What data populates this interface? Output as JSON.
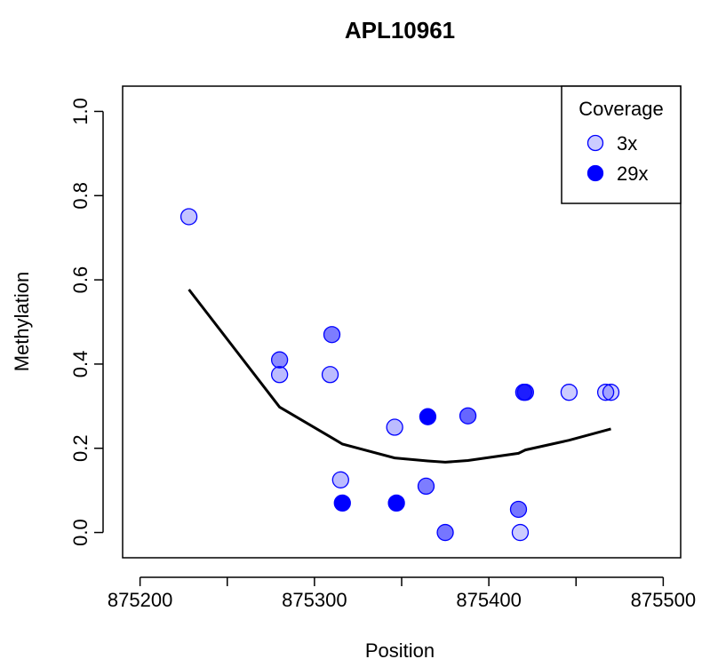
{
  "chart_data": {
    "type": "scatter",
    "title": "APL10961",
    "xlabel": "Position",
    "ylabel": "Methylation",
    "xlim": [
      875190,
      875510
    ],
    "ylim": [
      -0.06,
      1.06
    ],
    "xticks": [
      875200,
      875250,
      875300,
      875350,
      875400,
      875450,
      875500
    ],
    "xtick_labels": [
      "875200",
      "",
      "875300",
      "",
      "875400",
      "",
      "875500"
    ],
    "yticks": [
      0.0,
      0.2,
      0.4,
      0.6,
      0.8,
      1.0
    ],
    "ytick_labels": [
      "0.0",
      "0.2",
      "0.4",
      "0.6",
      "0.8",
      "1.0"
    ],
    "grid": false,
    "point_color": "#0000ff",
    "line_color": "#000000",
    "points": [
      {
        "x": 875228,
        "y": 0.75,
        "coverage": 4
      },
      {
        "x": 875280,
        "y": 0.41,
        "coverage": 11
      },
      {
        "x": 875280,
        "y": 0.375,
        "coverage": 5
      },
      {
        "x": 875310,
        "y": 0.47,
        "coverage": 13
      },
      {
        "x": 875309,
        "y": 0.375,
        "coverage": 5
      },
      {
        "x": 875315,
        "y": 0.125,
        "coverage": 5
      },
      {
        "x": 875316,
        "y": 0.07,
        "coverage": 29
      },
      {
        "x": 875346,
        "y": 0.25,
        "coverage": 5
      },
      {
        "x": 875347,
        "y": 0.07,
        "coverage": 29
      },
      {
        "x": 875365,
        "y": 0.275,
        "coverage": 29
      },
      {
        "x": 875364,
        "y": 0.11,
        "coverage": 13
      },
      {
        "x": 875375,
        "y": 0.0,
        "coverage": 14
      },
      {
        "x": 875388,
        "y": 0.277,
        "coverage": 16
      },
      {
        "x": 875417,
        "y": 0.055,
        "coverage": 14
      },
      {
        "x": 875418,
        "y": 0.0,
        "coverage": 3
      },
      {
        "x": 875420,
        "y": 0.333,
        "coverage": 18
      },
      {
        "x": 875421,
        "y": 0.333,
        "coverage": 18
      },
      {
        "x": 875446,
        "y": 0.333,
        "coverage": 3
      },
      {
        "x": 875467,
        "y": 0.333,
        "coverage": 3
      },
      {
        "x": 875470,
        "y": 0.333,
        "coverage": 3
      }
    ],
    "smooth_line": {
      "x": [
        875228,
        875280,
        875310,
        875316,
        875346,
        875365,
        875375,
        875388,
        875417,
        875421,
        875446,
        875470
      ],
      "y": [
        0.577,
        0.298,
        0.225,
        0.21,
        0.177,
        0.17,
        0.167,
        0.171,
        0.188,
        0.196,
        0.219,
        0.246
      ]
    },
    "legend": {
      "title": "Coverage",
      "position": "top-right",
      "entries": [
        {
          "label": "3x",
          "coverage": 3
        },
        {
          "label": "29x",
          "coverage": 29
        }
      ]
    }
  }
}
